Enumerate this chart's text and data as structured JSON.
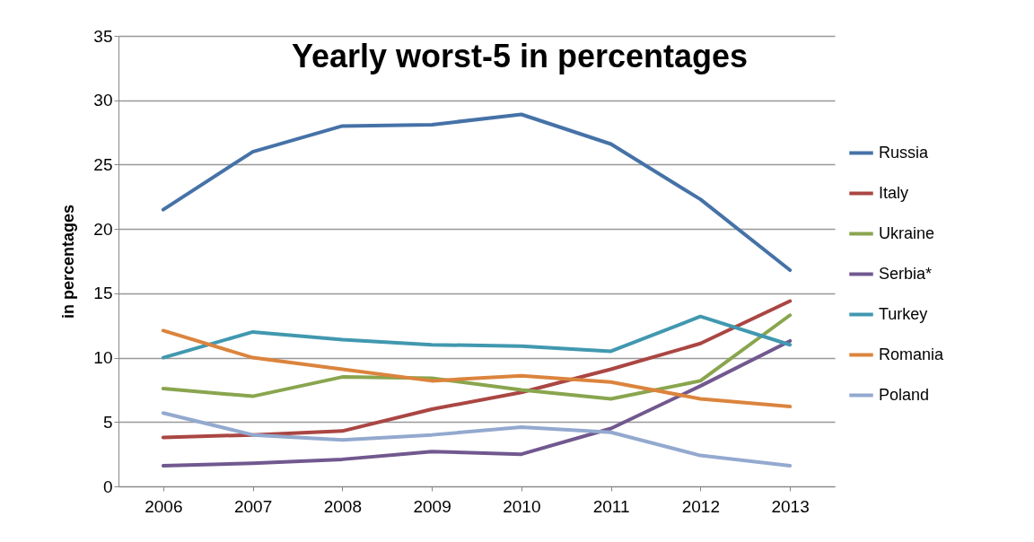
{
  "chart_data": {
    "type": "line",
    "title": "Yearly worst-5 in percentages",
    "ylabel": "in percentages",
    "categories": [
      "2006",
      "2007",
      "2008",
      "2009",
      "2010",
      "2011",
      "2012",
      "2013"
    ],
    "series": [
      {
        "name": "Russia",
        "color": "#4572a7",
        "values": [
          21.5,
          26,
          28,
          28.1,
          28.9,
          26.6,
          22.3,
          16.8
        ]
      },
      {
        "name": "Italy",
        "color": "#aa4643",
        "values": [
          3.8,
          4.0,
          4.3,
          6.0,
          7.3,
          9.1,
          11.1,
          14.4
        ]
      },
      {
        "name": "Ukraine",
        "color": "#89a54e",
        "values": [
          7.6,
          7.0,
          8.5,
          8.4,
          7.5,
          6.8,
          8.2,
          13.3
        ]
      },
      {
        "name": "Serbia*",
        "color": "#71588f",
        "values": [
          1.6,
          1.8,
          2.1,
          2.7,
          2.5,
          4.5,
          7.8,
          11.3
        ]
      },
      {
        "name": "Turkey",
        "color": "#4198af",
        "values": [
          10.0,
          12.0,
          11.4,
          11.0,
          10.9,
          10.5,
          13.2,
          11.0
        ]
      },
      {
        "name": "Romania",
        "color": "#db843d",
        "values": [
          12.1,
          10.0,
          9.1,
          8.2,
          8.6,
          8.1,
          6.8,
          6.2
        ]
      },
      {
        "name": "Poland",
        "color": "#93a9cf",
        "values": [
          5.7,
          4.0,
          3.6,
          4.0,
          4.6,
          4.2,
          2.4,
          1.6
        ]
      }
    ],
    "ylim": [
      0,
      35
    ],
    "yticks": [
      0,
      5,
      10,
      15,
      20,
      25,
      30,
      35
    ],
    "grid": "y",
    "legend": "right",
    "line_style": "solid",
    "marker": "none"
  }
}
